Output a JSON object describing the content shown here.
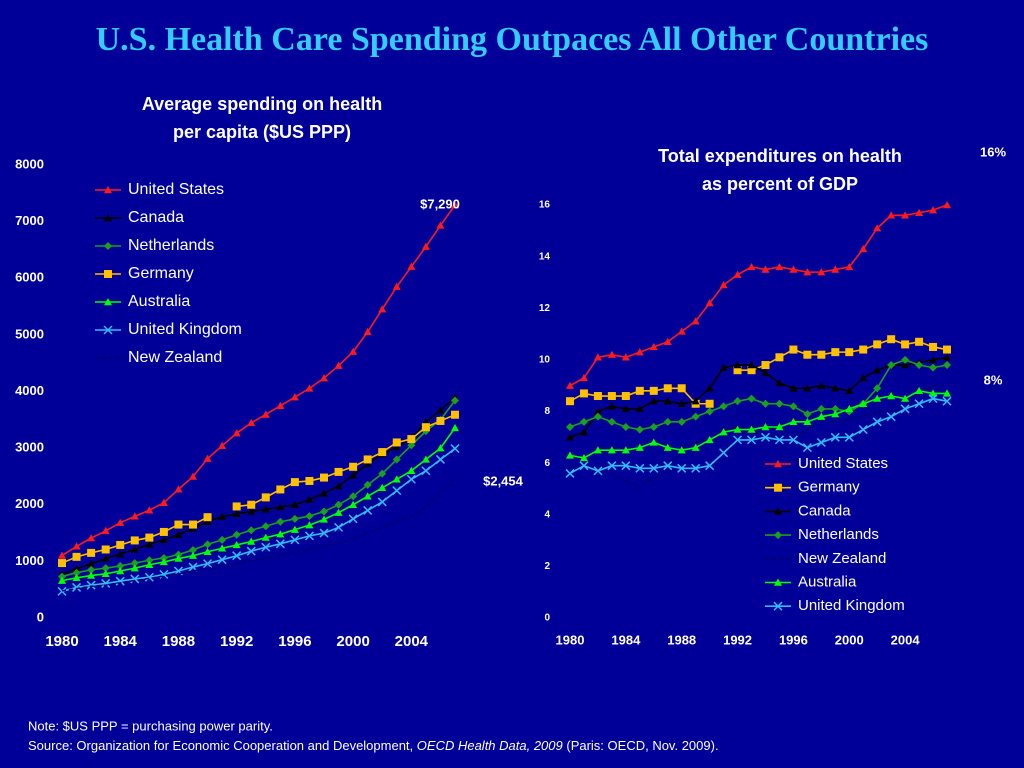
{
  "header": {
    "title": "U.S. Health Care Spending Outpaces All Other Countries"
  },
  "chart_data": [
    {
      "type": "line",
      "title": [
        "Average spending on health",
        "per capita ($US PPP)"
      ],
      "x": [
        1980,
        1981,
        1982,
        1983,
        1984,
        1985,
        1986,
        1987,
        1988,
        1989,
        1990,
        1991,
        1992,
        1993,
        1994,
        1995,
        1996,
        1997,
        1998,
        1999,
        2000,
        2001,
        2002,
        2003,
        2004,
        2005,
        2006,
        2007
      ],
      "xlim": [
        1980,
        2007
      ],
      "xticks": [
        1980,
        1984,
        1988,
        1992,
        1996,
        2000,
        2004
      ],
      "ylim": [
        0,
        8000
      ],
      "yticks": [
        0,
        1000,
        2000,
        3000,
        4000,
        5000,
        6000,
        7000,
        8000
      ],
      "annotations": [
        "$7,290",
        "$2,454"
      ],
      "series": [
        {
          "name": "United States",
          "color": "#ff1a1a",
          "marker": "triangle",
          "values": [
            1102,
            1266,
            1411,
            1538,
            1683,
            1795,
            1903,
            2035,
            2272,
            2497,
            2814,
            3042,
            3264,
            3446,
            3594,
            3748,
            3900,
            4055,
            4236,
            4456,
            4703,
            5052,
            5453,
            5851,
            6204,
            6558,
            6933,
            7290
          ]
        },
        {
          "name": "Canada",
          "color": "#000000",
          "marker": "triangle",
          "values": [
            770,
            870,
            960,
            1050,
            1130,
            1210,
            1300,
            1380,
            1470,
            1580,
            1700,
            1790,
            1840,
            1880,
            1920,
            1960,
            2000,
            2090,
            2200,
            2330,
            2520,
            2720,
            2890,
            3020,
            3180,
            3460,
            3670,
            3895
          ]
        },
        {
          "name": "Netherlands",
          "color": "#1aa01a",
          "marker": "diamond",
          "values": [
            730,
            800,
            850,
            880,
            920,
            970,
            1020,
            1060,
            1120,
            1200,
            1300,
            1380,
            1470,
            1550,
            1620,
            1700,
            1750,
            1800,
            1880,
            2000,
            2150,
            2350,
            2550,
            2800,
            3050,
            3300,
            3500,
            3840
          ]
        },
        {
          "name": "Germany",
          "color": "#ffc000",
          "marker": "square",
          "values": [
            970,
            1080,
            1150,
            1210,
            1290,
            1370,
            1420,
            1520,
            1650,
            1650,
            1780,
            null,
            1970,
            2000,
            2130,
            2270,
            2400,
            2420,
            2480,
            2580,
            2670,
            2800,
            2930,
            3100,
            3160,
            3370,
            3480,
            3590
          ]
        },
        {
          "name": "Australia",
          "color": "#00ff00",
          "marker": "triangle",
          "values": [
            660,
            710,
            750,
            780,
            830,
            880,
            940,
            990,
            1050,
            1100,
            1170,
            1230,
            1290,
            1350,
            1420,
            1480,
            1560,
            1640,
            1740,
            1860,
            2000,
            2150,
            2300,
            2450,
            2600,
            2800,
            3000,
            3357
          ]
        },
        {
          "name": "United Kingdom",
          "color": "#33bbff",
          "marker": "x",
          "values": [
            470,
            540,
            580,
            610,
            650,
            690,
            720,
            770,
            830,
            900,
            960,
            1030,
            1100,
            1180,
            1250,
            1310,
            1380,
            1450,
            1500,
            1600,
            1750,
            1900,
            2050,
            2250,
            2450,
            2600,
            2800,
            2992
          ]
        },
        {
          "name": "New Zealand",
          "color": "#000066",
          "marker": "none",
          "values": [
            480,
            520,
            560,
            580,
            620,
            660,
            700,
            740,
            780,
            830,
            880,
            920,
            970,
            1010,
            1060,
            1100,
            1160,
            1210,
            1270,
            1330,
            1390,
            1500,
            1600,
            1700,
            1800,
            1950,
            2200,
            2454
          ]
        }
      ]
    },
    {
      "type": "line",
      "title": [
        "Total expenditures on health",
        "as percent of GDP"
      ],
      "x": [
        1980,
        1981,
        1982,
        1983,
        1984,
        1985,
        1986,
        1987,
        1988,
        1989,
        1990,
        1991,
        1992,
        1993,
        1994,
        1995,
        1996,
        1997,
        1998,
        1999,
        2000,
        2001,
        2002,
        2003,
        2004,
        2005,
        2006,
        2007
      ],
      "xlim": [
        1980,
        2007
      ],
      "xticks": [
        1980,
        1984,
        1988,
        1992,
        1996,
        2000,
        2004
      ],
      "ylim": [
        0,
        16
      ],
      "yticks": [
        0,
        2,
        4,
        6,
        8,
        10,
        12,
        14,
        16
      ],
      "annotations": [
        "16%",
        "8%"
      ],
      "series": [
        {
          "name": "United States",
          "color": "#ff1a1a",
          "marker": "triangle",
          "values": [
            9.0,
            9.3,
            10.1,
            10.2,
            10.1,
            10.3,
            10.5,
            10.7,
            11.1,
            11.5,
            12.2,
            12.9,
            13.3,
            13.6,
            13.5,
            13.6,
            13.5,
            13.4,
            13.4,
            13.5,
            13.6,
            14.3,
            15.1,
            15.6,
            15.6,
            15.7,
            15.8,
            16.0
          ]
        },
        {
          "name": "Germany",
          "color": "#ffc000",
          "marker": "square",
          "values": [
            8.4,
            8.7,
            8.6,
            8.6,
            8.6,
            8.8,
            8.8,
            8.9,
            8.9,
            8.3,
            8.3,
            null,
            9.6,
            9.6,
            9.8,
            10.1,
            10.4,
            10.2,
            10.2,
            10.3,
            10.3,
            10.4,
            10.6,
            10.8,
            10.6,
            10.7,
            10.5,
            10.4
          ]
        },
        {
          "name": "Canada",
          "color": "#000000",
          "marker": "triangle",
          "values": [
            7.0,
            7.2,
            8.0,
            8.2,
            8.1,
            8.1,
            8.4,
            8.4,
            8.3,
            8.4,
            8.9,
            9.7,
            9.8,
            9.8,
            9.5,
            9.1,
            8.9,
            8.9,
            9.0,
            8.9,
            8.8,
            9.3,
            9.6,
            9.8,
            9.8,
            9.9,
            10.0,
            10.1
          ]
        },
        {
          "name": "Netherlands",
          "color": "#1aa01a",
          "marker": "diamond",
          "values": [
            7.4,
            7.6,
            7.8,
            7.6,
            7.4,
            7.3,
            7.4,
            7.6,
            7.6,
            7.8,
            8.0,
            8.2,
            8.4,
            8.5,
            8.3,
            8.3,
            8.2,
            7.9,
            8.1,
            8.1,
            8.0,
            8.3,
            8.9,
            9.8,
            10.0,
            9.8,
            9.7,
            9.8
          ]
        },
        {
          "name": "New Zealand",
          "color": "#000066",
          "marker": "none",
          "values": [
            5.9,
            5.9,
            5.8,
            5.6,
            5.3,
            5.1,
            5.4,
            5.7,
            6.6,
            6.8,
            6.9,
            7.3,
            7.4,
            7.2,
            7.1,
            7.1,
            7.0,
            7.3,
            7.7,
            7.6,
            7.7,
            7.8,
            8.0,
            8.0,
            8.1,
            8.7,
            9.0,
            9.1
          ]
        },
        {
          "name": "Australia",
          "color": "#00ff00",
          "marker": "triangle",
          "values": [
            6.3,
            6.2,
            6.5,
            6.5,
            6.5,
            6.6,
            6.8,
            6.6,
            6.5,
            6.6,
            6.9,
            7.2,
            7.3,
            7.3,
            7.4,
            7.4,
            7.6,
            7.6,
            7.8,
            7.9,
            8.1,
            8.3,
            8.5,
            8.6,
            8.5,
            8.8,
            8.7,
            8.7
          ]
        },
        {
          "name": "United Kingdom",
          "color": "#33bbff",
          "marker": "x",
          "values": [
            5.6,
            5.9,
            5.7,
            5.9,
            5.9,
            5.8,
            5.8,
            5.9,
            5.8,
            5.8,
            5.9,
            6.4,
            6.9,
            6.9,
            7.0,
            6.9,
            6.9,
            6.6,
            6.8,
            7.0,
            7.0,
            7.3,
            7.6,
            7.8,
            8.1,
            8.3,
            8.5,
            8.4
          ]
        }
      ]
    }
  ],
  "footer": {
    "note": "Note: $US PPP = purchasing power parity.",
    "source": [
      "Source: Organization for Economic Cooperation and Development, ",
      "OECD Health Data, 2009",
      " (Paris: OECD, Nov. 2009)."
    ]
  }
}
